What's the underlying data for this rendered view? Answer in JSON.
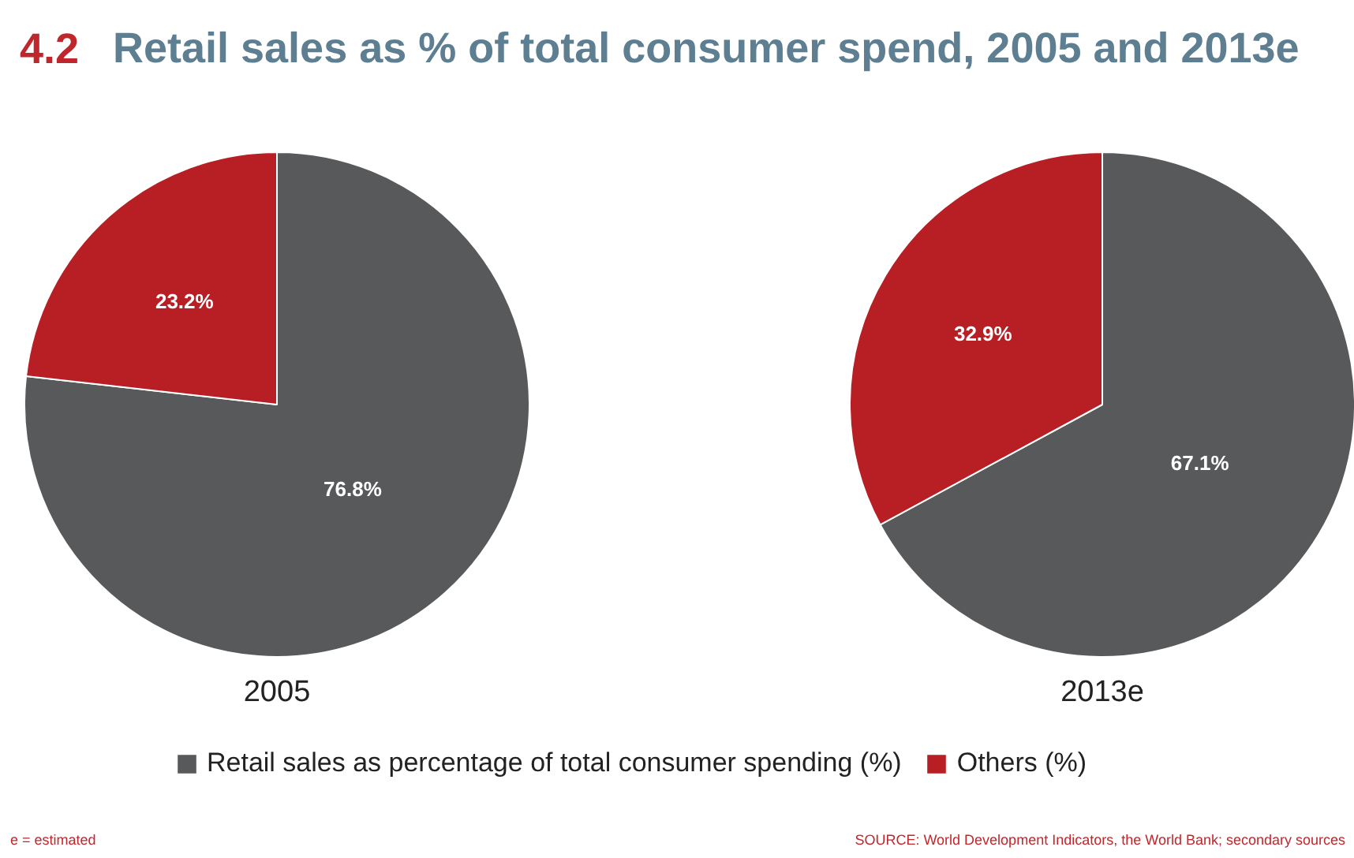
{
  "chart_data": [
    {
      "type": "pie",
      "title": "4.2 Retail sales as % of total consumer spend, 2005 and 2013e",
      "xlabel": "2005",
      "categories": [
        "Retail sales as percentage of total consumer spending (%)",
        "Others (%)"
      ],
      "values": [
        76.8,
        23.2
      ],
      "colors": [
        "#58595b",
        "#b71f24"
      ],
      "value_labels": [
        "76.8%",
        "23.2%"
      ],
      "legend": "bottom",
      "annotations": [
        "e = estimated"
      ]
    },
    {
      "type": "pie",
      "xlabel": "2013e",
      "categories": [
        null,
        null
      ],
      "values": [
        67.1,
        32.9
      ],
      "colors": [
        "#58595b",
        "#b71f24"
      ],
      "value_labels": [
        "67.1%",
        "32.9%"
      ],
      "annotations": [
        "SOURCE: World Development Indicators, the World Bank; secondary sources"
      ]
    }
  ]
}
